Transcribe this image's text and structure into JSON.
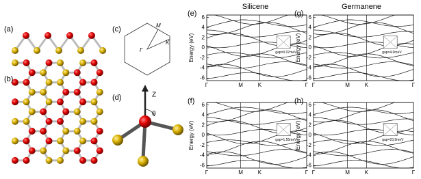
{
  "figure": {
    "panel_labels": {
      "a": "(a)",
      "b": "(b)",
      "c": "(c)",
      "d": "(d)"
    },
    "titles": {
      "silicene": "Silicene",
      "germanene": "Germanene"
    },
    "bz_labels": {
      "m": "M",
      "k": "K",
      "gamma": "Γ"
    },
    "axis_labels": {
      "z": "Z",
      "theta": "θ"
    },
    "plots": [
      {
        "label": "(e)",
        "ylabel": "Energy (eV)",
        "ylim": [
          -6.5,
          6.5
        ],
        "yticks": [
          -6,
          -4,
          -2,
          0,
          2,
          4,
          6
        ],
        "kpoints": [
          "Γ",
          "M",
          "K",
          "Γ"
        ],
        "gap": "gap=0.07meV"
      },
      {
        "label": "(g)",
        "ylabel": "Energy (eV)",
        "ylim": [
          -6.5,
          6.5
        ],
        "yticks": [
          -6,
          -4,
          -2,
          0,
          2,
          4,
          6
        ],
        "kpoints": [
          "Γ",
          "M",
          "K",
          "Γ"
        ],
        "gap": "gap=4.0meV"
      },
      {
        "label": "(f)",
        "ylabel": "Energy (eV)",
        "ylim": [
          -6.5,
          6.5
        ],
        "yticks": [
          -6,
          -4,
          -2,
          0,
          2,
          4,
          6
        ],
        "kpoints": [
          "Γ",
          "M",
          "K",
          "Γ"
        ],
        "gap": "gap=1.55meV"
      },
      {
        "label": "(h)",
        "ylabel": "Energy (eV)",
        "ylim": [
          -6.5,
          6.5
        ],
        "yticks": [
          -6,
          -4,
          -2,
          0,
          2,
          4,
          6
        ],
        "kpoints": [
          "Γ",
          "M",
          "K",
          "Γ"
        ],
        "gap": "gap=23.9meV"
      }
    ]
  }
}
